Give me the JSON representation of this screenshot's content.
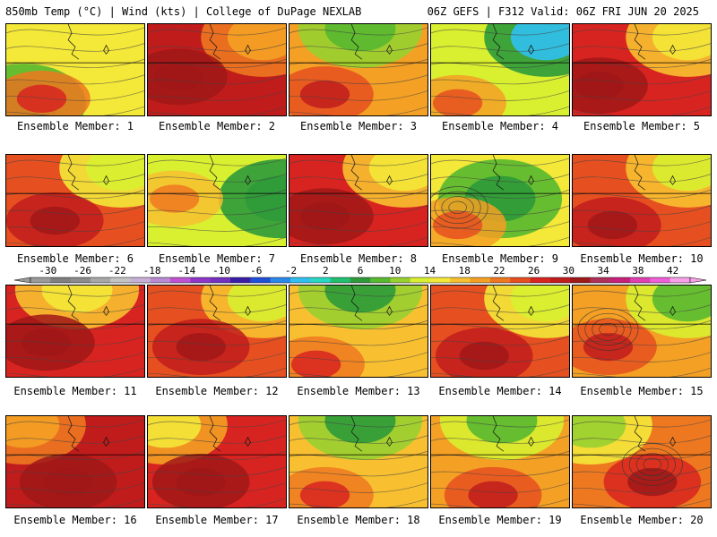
{
  "header": {
    "left": "850mb Temp (°C) | Wind (kts) | College of DuPage NEXLAB",
    "right": "06Z GEFS | F312 Valid: 06Z FRI JUN 20 2025"
  },
  "colorbar": {
    "tick_labels": [
      "-30",
      "-26",
      "-22",
      "-18",
      "-14",
      "-10",
      "-6",
      "-2",
      "2",
      "6",
      "10",
      "14",
      "18",
      "22",
      "26",
      "30",
      "34",
      "38",
      "42"
    ],
    "colors": [
      "#9a9a9a",
      "#7f7f7f",
      "#8c8c8c",
      "#a8a8a8",
      "#c4c4c4",
      "#c8b0d8",
      "#b98ad2",
      "#c052d2",
      "#8f36c8",
      "#7430c0",
      "#3a1ea8",
      "#2050d8",
      "#2a88e8",
      "#30c0f0",
      "#28d8c0",
      "#20c070",
      "#2e9a3a",
      "#58b830",
      "#98d030",
      "#d8f030",
      "#f4e838",
      "#f8c030",
      "#f4a024",
      "#ee7820",
      "#e65020",
      "#d82420",
      "#c01c1c",
      "#a01818",
      "#b0305a",
      "#c8207a",
      "#e040b0",
      "#f060d8",
      "#f8a0e8"
    ]
  },
  "panels": [
    {
      "label": "Ensemble Member: 1",
      "warmth": 0.3,
      "cool": "sw",
      "hot": [
        40,
        85
      ],
      "blob": false
    },
    {
      "label": "Ensemble Member: 2",
      "warmth": 0.85,
      "cool": "ne",
      "hot": [
        35,
        60
      ],
      "blob": false
    },
    {
      "label": "Ensemble Member: 3",
      "warmth": 0.4,
      "cool": "n",
      "hot": [
        40,
        80
      ],
      "blob": false
    },
    {
      "label": "Ensemble Member: 4",
      "warmth": 0.2,
      "cool": "ne",
      "hot": [
        30,
        90
      ],
      "blob": false
    },
    {
      "label": "Ensemble Member: 5",
      "warmth": 0.7,
      "cool": "ne",
      "hot": [
        30,
        70
      ],
      "blob": false
    },
    {
      "label": "Ensemble Member: 6",
      "warmth": 0.6,
      "cool": "ne",
      "hot": [
        55,
        75
      ],
      "blob": false
    },
    {
      "label": "Ensemble Member: 7",
      "warmth": 0.15,
      "cool": "e",
      "hot": [
        30,
        50
      ],
      "blob": false
    },
    {
      "label": "Ensemble Member: 8",
      "warmth": 0.7,
      "cool": "ne",
      "hot": [
        40,
        70
      ],
      "blob": false
    },
    {
      "label": "Ensemble Member: 9",
      "warmth": 0.25,
      "cool": "c",
      "hot": [
        30,
        80
      ],
      "blob": true
    },
    {
      "label": "Ensemble Member: 10",
      "warmth": 0.65,
      "cool": "ne",
      "hot": [
        45,
        80
      ],
      "blob": false
    },
    {
      "label": "Ensemble Member: 11",
      "warmth": 0.7,
      "cool": "n",
      "hot": [
        45,
        65
      ],
      "blob": false
    },
    {
      "label": "Ensemble Member: 12",
      "warmth": 0.65,
      "cool": "ne",
      "hot": [
        60,
        70
      ],
      "blob": false
    },
    {
      "label": "Ensemble Member: 13",
      "warmth": 0.35,
      "cool": "n",
      "hot": [
        30,
        90
      ],
      "blob": false
    },
    {
      "label": "Ensemble Member: 14",
      "warmth": 0.6,
      "cool": "ne",
      "hot": [
        60,
        80
      ],
      "blob": false
    },
    {
      "label": "Ensemble Member: 15",
      "warmth": 0.45,
      "cool": "ne",
      "hot": [
        40,
        70
      ],
      "blob": true
    },
    {
      "label": "Ensemble Member: 16",
      "warmth": 0.85,
      "cool": "nw",
      "hot": [
        70,
        75
      ],
      "blob": false
    },
    {
      "label": "Ensemble Member: 17",
      "warmth": 0.75,
      "cool": "nw",
      "hot": [
        60,
        75
      ],
      "blob": false
    },
    {
      "label": "Ensemble Member: 18",
      "warmth": 0.35,
      "cool": "n",
      "hot": [
        40,
        90
      ],
      "blob": false
    },
    {
      "label": "Ensemble Member: 19",
      "warmth": 0.45,
      "cool": "n",
      "hot": [
        70,
        90
      ],
      "blob": false
    },
    {
      "label": "Ensemble Member: 20",
      "warmth": 0.55,
      "cool": "nw",
      "hot": [
        90,
        75
      ],
      "blob": true
    }
  ]
}
